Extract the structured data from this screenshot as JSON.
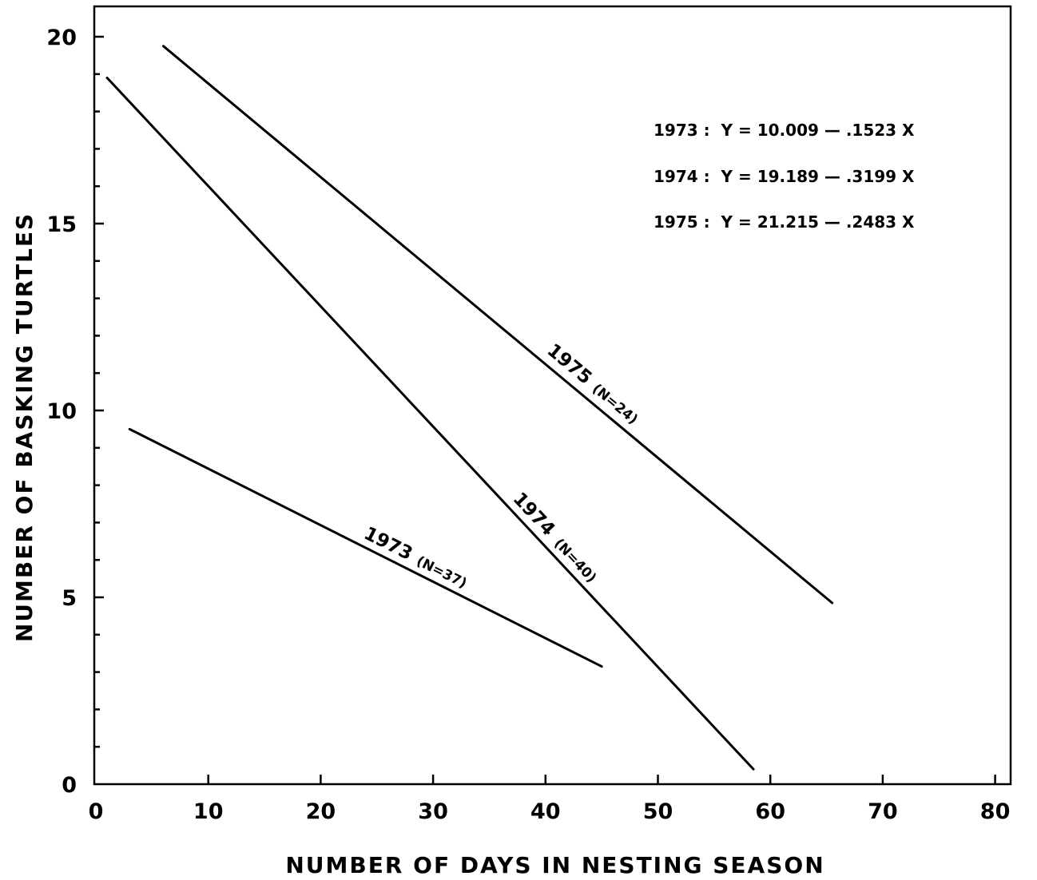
{
  "chart_data": {
    "type": "line",
    "xlabel": "NUMBER OF DAYS IN NESTING SEASON",
    "ylabel": "NUMBER OF BASKING TURTLES",
    "xlim": [
      0,
      80
    ],
    "ylim": [
      0,
      20
    ],
    "x_ticks": [
      0,
      10,
      20,
      30,
      40,
      50,
      60,
      70,
      80
    ],
    "x_tick_labels": [
      "0",
      "10",
      "20",
      "30",
      "40",
      "50",
      "60",
      "70",
      "80"
    ],
    "y_ticks": [
      0,
      5,
      10,
      15,
      20
    ],
    "y_tick_labels": [
      "0",
      "5",
      "10",
      "15",
      "20"
    ],
    "y_minor_ticks": [
      1,
      2,
      3,
      4,
      6,
      7,
      8,
      9,
      11,
      12,
      13,
      14,
      16,
      17,
      18,
      19
    ],
    "grid": false,
    "equations": [
      "1973 :  Y = 10.009 — .1523 X",
      "1974 :  Y = 19.189 — .3199 X",
      "1975 :  Y = 21.215 — .2483 X"
    ],
    "series": [
      {
        "name": "1973",
        "n_label": "(N=37)",
        "x": [
          3,
          45
        ],
        "y": [
          9.5,
          3.15
        ]
      },
      {
        "name": "1974",
        "n_label": "(N=40)",
        "x": [
          1,
          58.5
        ],
        "y": [
          18.9,
          0.4
        ]
      },
      {
        "name": "1975",
        "n_label": "(N=24)",
        "x": [
          6,
          65.5
        ],
        "y": [
          19.75,
          4.85
        ]
      }
    ]
  }
}
